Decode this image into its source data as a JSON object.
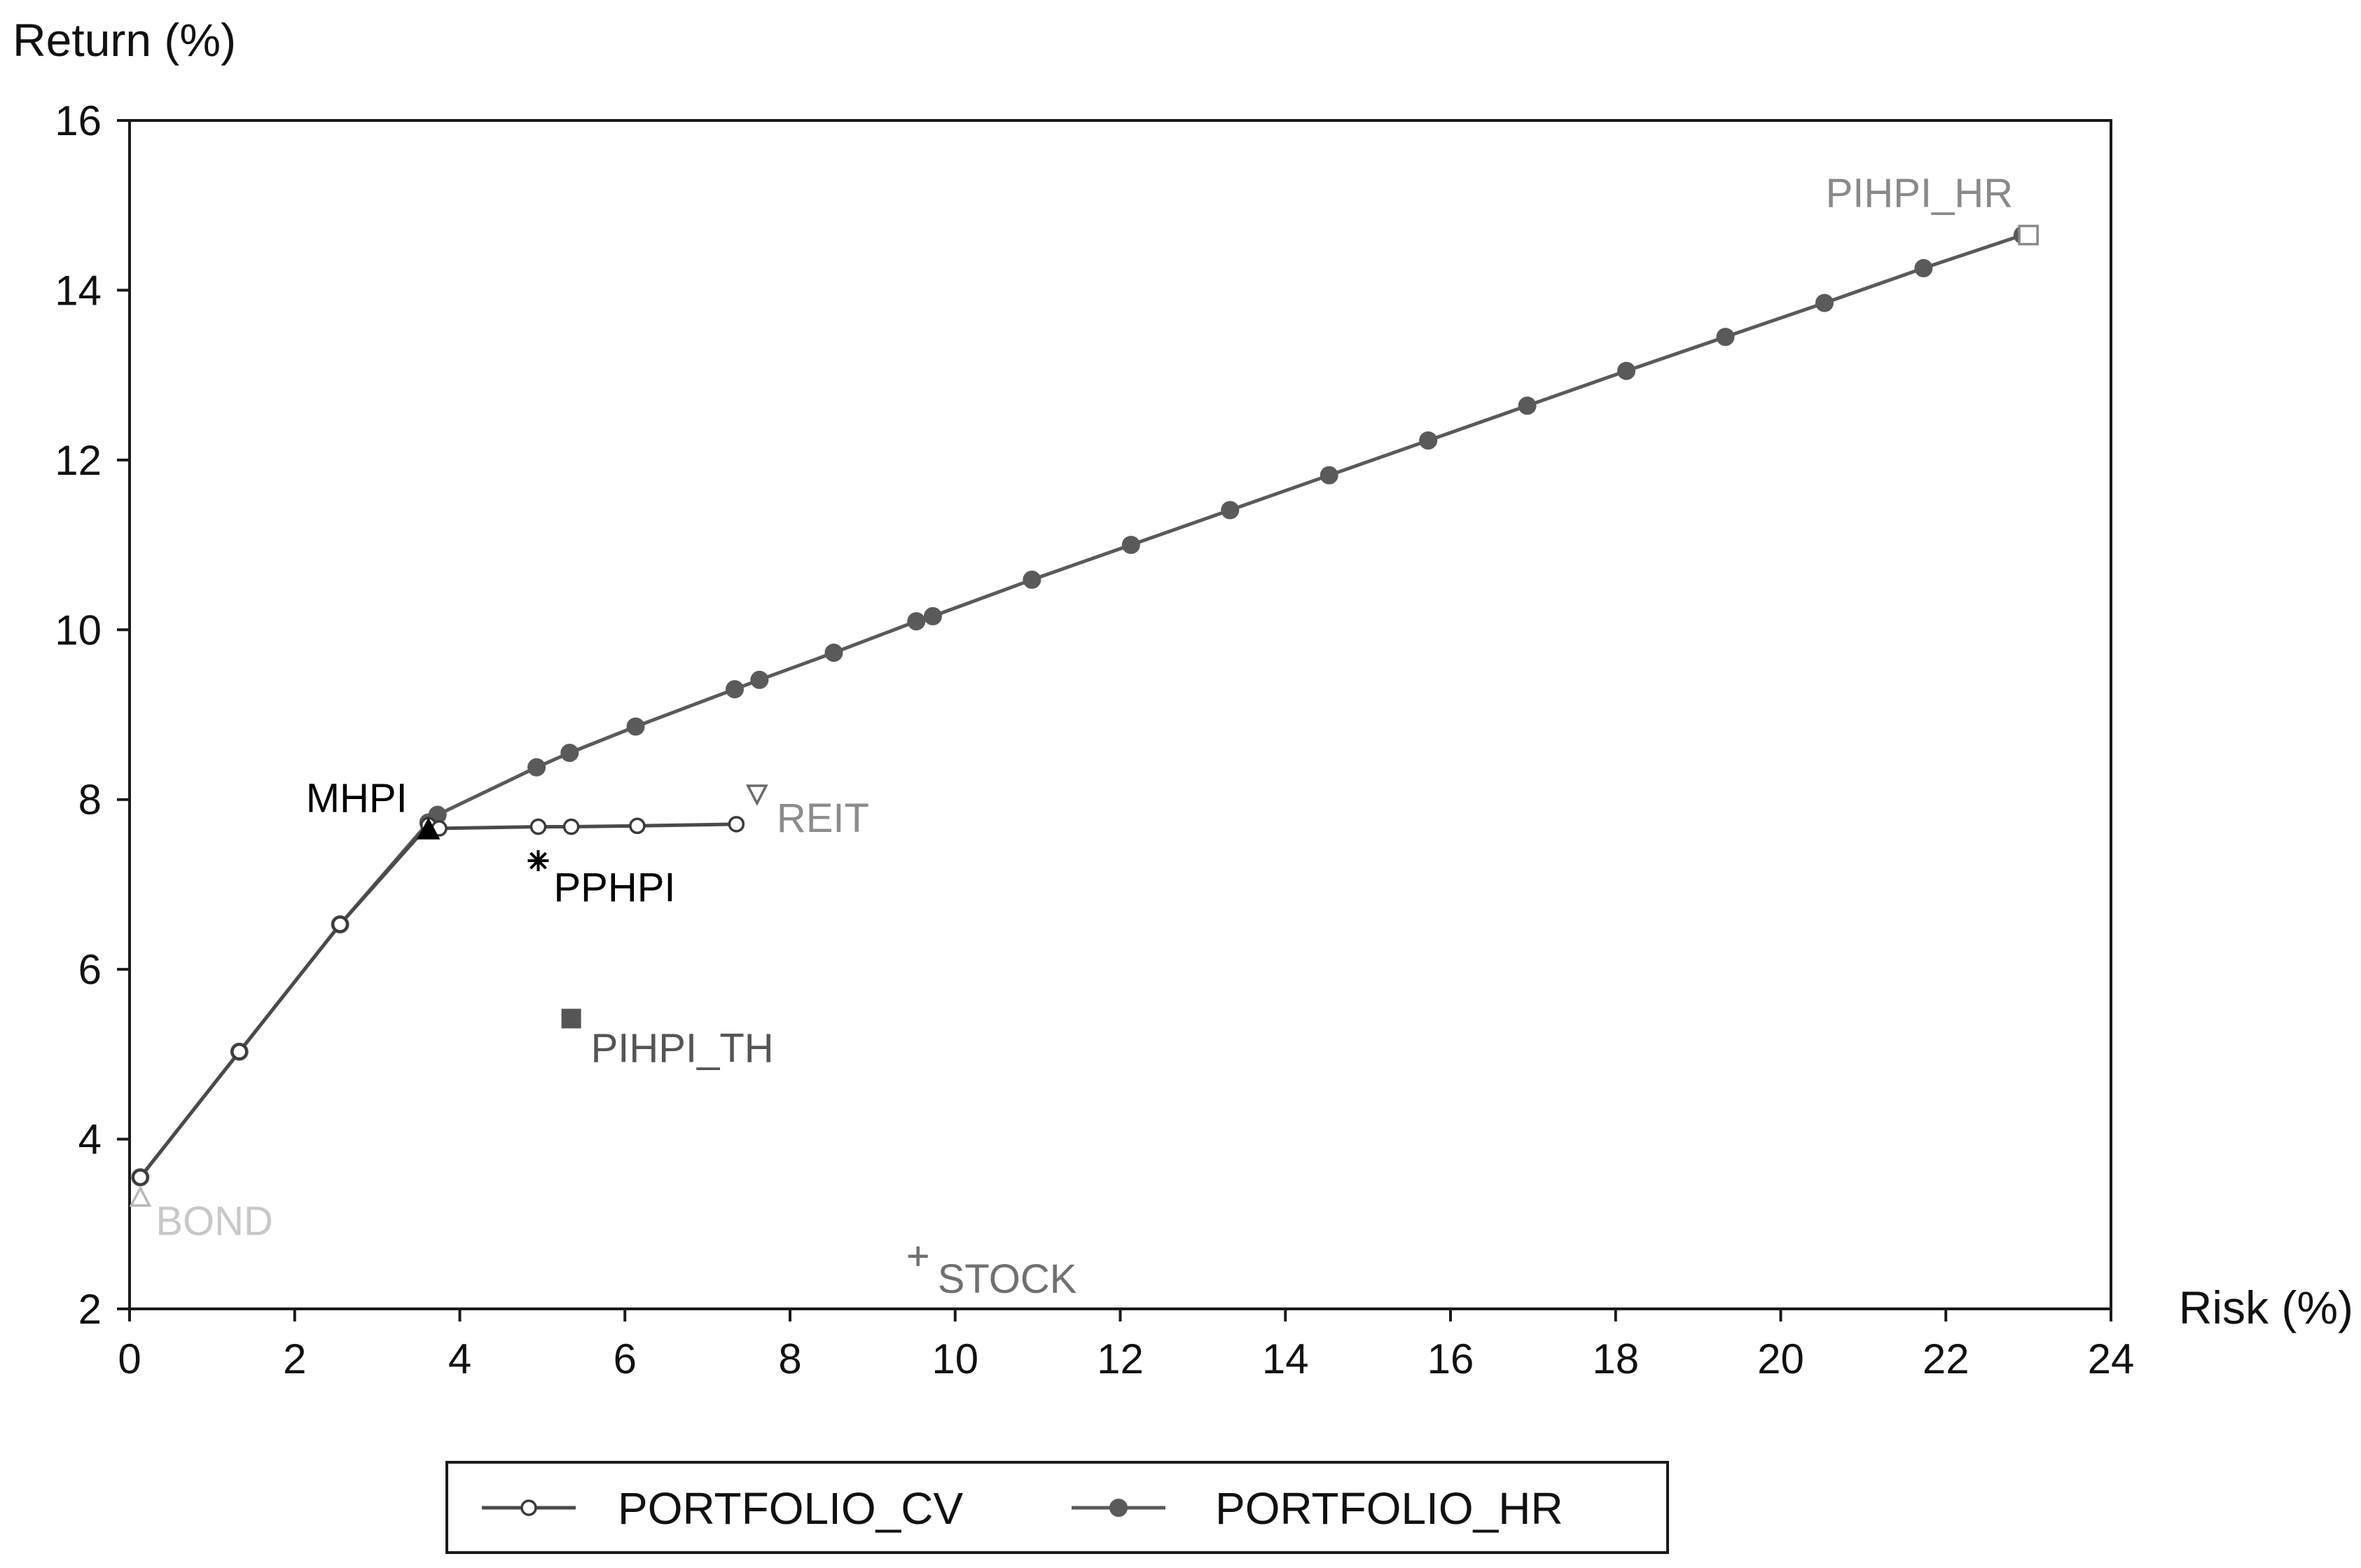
{
  "chart_data": {
    "type": "scatter",
    "title": "",
    "xlabel": "Risk (%)",
    "ylabel": "Return (%)",
    "xlim": [
      0,
      24
    ],
    "ylim": [
      2,
      16
    ],
    "xticks": [
      "0",
      "2",
      "4",
      "6",
      "8",
      "10",
      "12",
      "14",
      "16",
      "18",
      "20",
      "22",
      "24"
    ],
    "yticks": [
      "2",
      "4",
      "6",
      "8",
      "10",
      "12",
      "14",
      "16"
    ],
    "grid": false,
    "legend_position": "bottom",
    "series": [
      {
        "name": "PORTFOLIO_CV",
        "marker": "open-circle",
        "color": "#4a4a4a",
        "points": [
          [
            0.13,
            3.55
          ],
          [
            1.33,
            5.03
          ],
          [
            2.55,
            6.53
          ],
          [
            3.62,
            7.7
          ],
          [
            3.75,
            7.66
          ],
          [
            4.95,
            7.68
          ],
          [
            5.35,
            7.68
          ],
          [
            6.15,
            7.69
          ],
          [
            7.35,
            7.71
          ]
        ]
      },
      {
        "name": "PORTFOLIO_HR",
        "marker": "filled-circle",
        "color": "#5a5a5a",
        "points": [
          [
            0.13,
            3.55
          ],
          [
            1.33,
            5.03
          ],
          [
            2.55,
            6.53
          ],
          [
            3.62,
            7.73
          ],
          [
            3.73,
            7.82
          ],
          [
            4.93,
            8.38
          ],
          [
            5.33,
            8.55
          ],
          [
            6.13,
            8.86
          ],
          [
            7.33,
            9.3
          ],
          [
            7.63,
            9.41
          ],
          [
            8.53,
            9.73
          ],
          [
            9.53,
            10.1
          ],
          [
            9.73,
            10.16
          ],
          [
            10.93,
            10.59
          ],
          [
            12.13,
            11.0
          ],
          [
            13.33,
            11.41
          ],
          [
            14.53,
            11.82
          ],
          [
            15.73,
            12.23
          ],
          [
            16.93,
            12.64
          ],
          [
            18.13,
            13.05
          ],
          [
            19.33,
            13.45
          ],
          [
            20.53,
            13.85
          ],
          [
            21.73,
            14.26
          ],
          [
            22.93,
            14.65
          ]
        ]
      }
    ],
    "points": [
      {
        "label": "BOND",
        "x": 0.13,
        "y": 3.3,
        "marker": "open-triangle-up",
        "color": "#b8b8b8",
        "label_color": "#c8c8c8"
      },
      {
        "label": "MHPI",
        "x": 3.62,
        "y": 7.63,
        "marker": "filled-triangle-up",
        "color": "#000000",
        "label_color": "#000000"
      },
      {
        "label": "PPHPI",
        "x": 4.95,
        "y": 7.28,
        "marker": "asterisk",
        "color": "#000000",
        "label_color": "#000000"
      },
      {
        "label": "PIHPI_TH",
        "x": 5.35,
        "y": 5.42,
        "marker": "filled-square",
        "color": "#555555",
        "label_color": "#555555"
      },
      {
        "label": "REIT",
        "x": 7.6,
        "y": 8.08,
        "marker": "open-triangle-down",
        "color": "#6a6a6a",
        "label_color": "#8c8c8c"
      },
      {
        "label": "STOCK",
        "x": 9.55,
        "y": 2.62,
        "marker": "plus",
        "color": "#707070",
        "label_color": "#707070"
      },
      {
        "label": "PIHPI_HR",
        "x": 23.0,
        "y": 14.65,
        "marker": "open-square",
        "color": "#8a8a8a",
        "label_color": "#8a8a8a"
      }
    ]
  }
}
